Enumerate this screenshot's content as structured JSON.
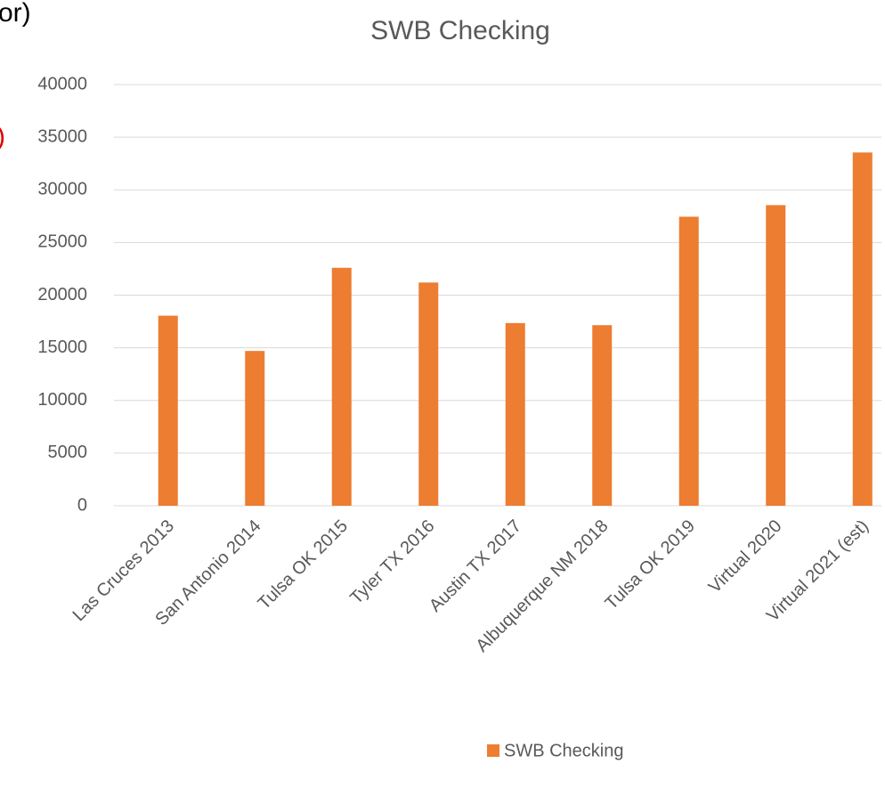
{
  "chart_data": {
    "type": "bar",
    "title": "SWB Checking",
    "categories": [
      "Las Cruces 2013",
      "San Antonio 2014",
      "Tulsa OK 2015",
      "Tyler TX 2016",
      "Austin TX 2017",
      "Albuquerque NM 2018",
      "Tulsa OK 2019",
      "Virtual 2020",
      "Virtual 2021 (est)"
    ],
    "series": [
      {
        "name": "SWB Checking",
        "color": "#ed7d31",
        "values": [
          18050,
          14700,
          22600,
          21200,
          17350,
          17150,
          27450,
          28550,
          33550
        ]
      }
    ],
    "ylim": [
      0,
      40000
    ],
    "yticks": [
      0,
      5000,
      10000,
      15000,
      20000,
      25000,
      30000,
      35000,
      40000
    ],
    "grid": true,
    "legend": "bottom"
  },
  "fragments": [
    "or)",
    ")"
  ]
}
